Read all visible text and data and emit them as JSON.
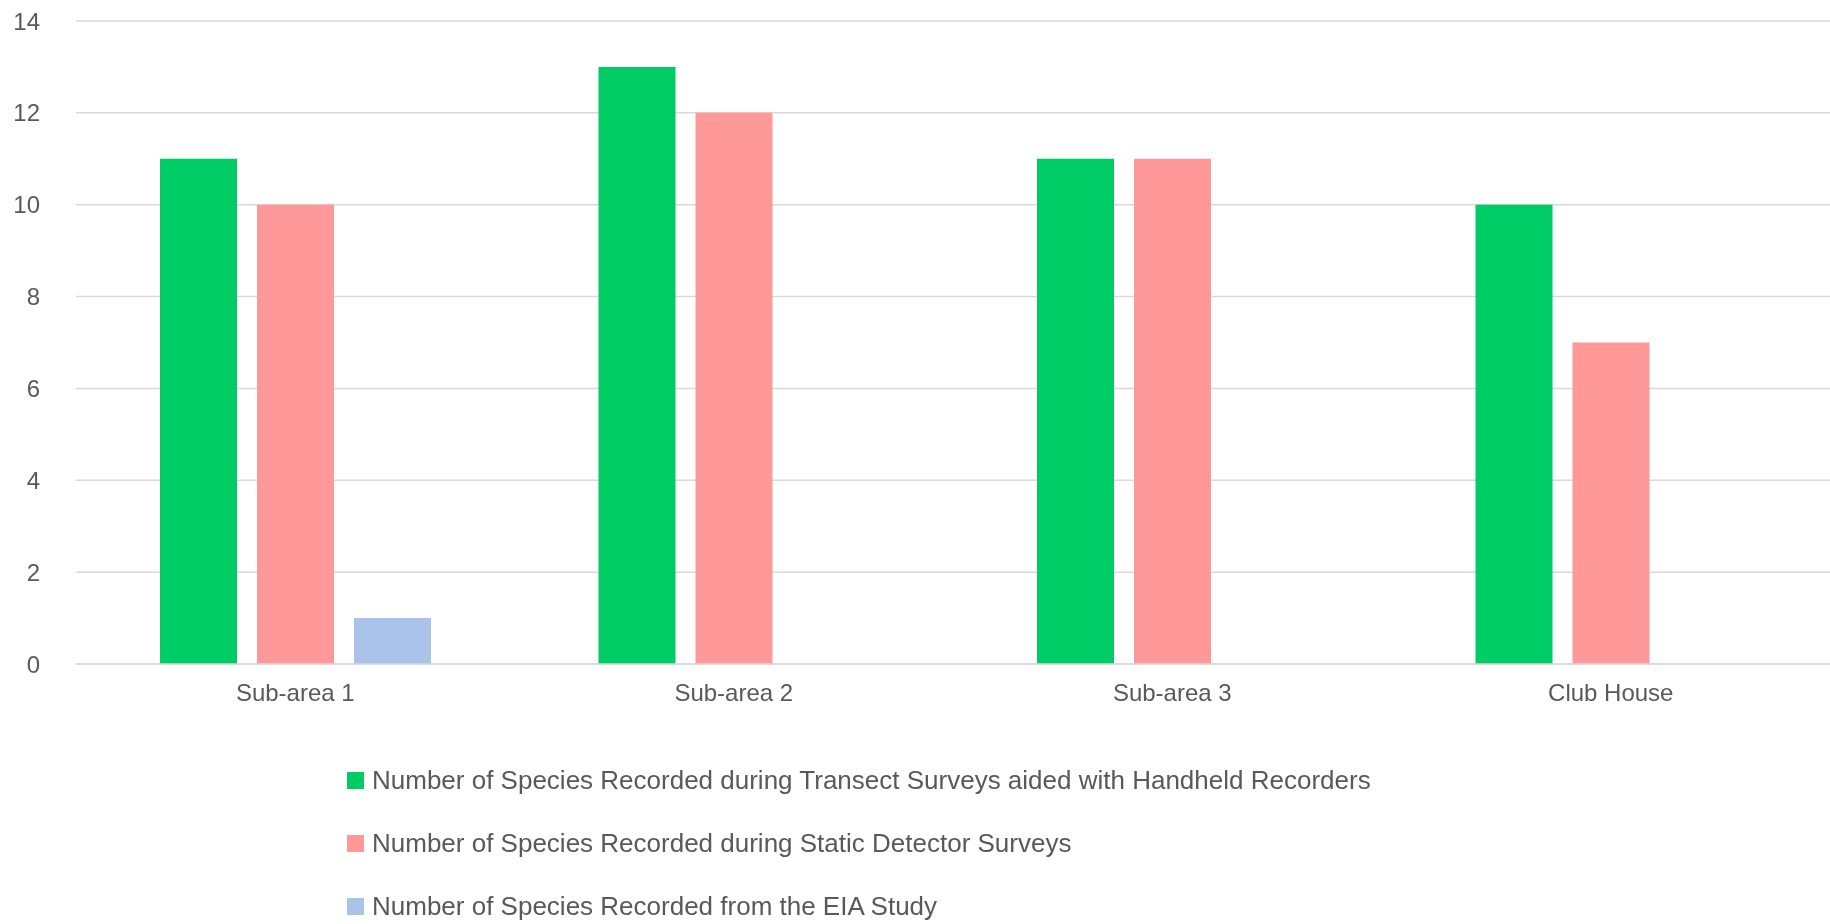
{
  "chart_data": {
    "type": "bar",
    "categories": [
      "Sub-area 1",
      "Sub-area 2",
      "Sub-area 3",
      "Club House"
    ],
    "series": [
      {
        "name": "Number of Species Recorded during Transect Surveys aided with Handheld Recorders",
        "color": "#00cc66",
        "values": [
          11,
          13,
          11,
          10
        ]
      },
      {
        "name": "Number of Species Recorded during Static Detector Surveys",
        "color": "#ff9999",
        "values": [
          10,
          12,
          11,
          7
        ]
      },
      {
        "name": "Number of Species Recorded from the EIA Study",
        "color": "#a9c4e8",
        "values": [
          1,
          null,
          null,
          null
        ]
      }
    ],
    "ylim": [
      0,
      14
    ],
    "yticks": [
      0,
      2,
      4,
      6,
      8,
      10,
      12,
      14
    ],
    "grid": "y",
    "legend": "bottom"
  }
}
